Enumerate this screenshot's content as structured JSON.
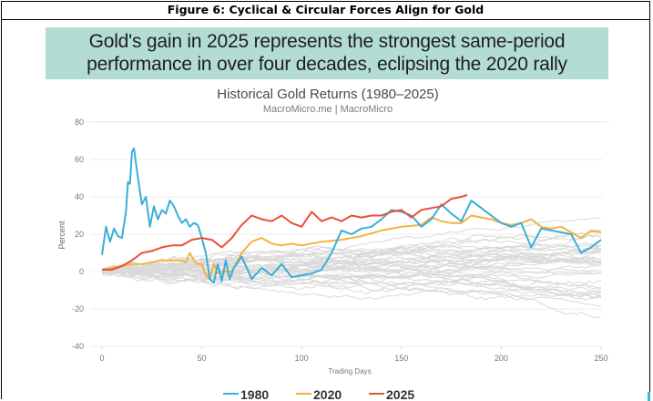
{
  "figure_title": "Figure 6: Cyclical & Circular Forces Align for Gold",
  "banner": {
    "line1": "Gold's gain in 2025 represents the strongest same-period",
    "line2": "performance in over four decades, eclipsing the 2020 rally"
  },
  "chart_data": {
    "type": "line",
    "title": "Historical Gold Returns (1980–2025)",
    "subtitle": "MacroMicro.me | MacroMicro",
    "xlabel": "Trading Days",
    "ylabel": "Percent",
    "xlim": [
      0,
      250
    ],
    "ylim": [
      -40,
      80
    ],
    "x_ticks": [
      0,
      50,
      100,
      150,
      200,
      250
    ],
    "x_tick_labels": [
      "0",
      "50",
      "100",
      "150",
      "200",
      "250"
    ],
    "y_ticks": [
      80,
      60,
      40,
      20,
      0,
      -20,
      -40
    ],
    "y_tick_labels": [
      "80",
      "60",
      "40",
      "20",
      "0",
      "-20",
      "-40"
    ],
    "grid": true,
    "legend_position": "bottom-center",
    "colors": {
      "1980": "#3aaed8",
      "2020": "#f3b33d",
      "2025": "#e8503a",
      "other": "#d9d9d9"
    },
    "series": [
      {
        "name": "1980",
        "x": [
          0,
          2,
          4,
          6,
          8,
          10,
          12,
          13,
          14,
          15,
          16,
          18,
          20,
          22,
          24,
          26,
          28,
          30,
          32,
          34,
          36,
          38,
          40,
          42,
          44,
          46,
          48,
          50,
          52,
          54,
          56,
          58,
          60,
          62,
          64,
          66,
          70,
          75,
          80,
          85,
          90,
          95,
          100,
          105,
          110,
          115,
          120,
          125,
          130,
          135,
          140,
          145,
          150,
          155,
          160,
          165,
          170,
          175,
          180,
          185,
          190,
          195,
          200,
          205,
          210,
          215,
          220,
          225,
          230,
          235,
          240,
          245,
          250
        ],
        "y": [
          9,
          24,
          16,
          23,
          19,
          18,
          32,
          48,
          47,
          64,
          66,
          50,
          36,
          40,
          24,
          35,
          28,
          33,
          31,
          38,
          35,
          30,
          26,
          28,
          24,
          26,
          25,
          18,
          10,
          -4,
          -6,
          4,
          -5,
          6,
          -4,
          2,
          8,
          -4,
          2,
          -2,
          4,
          -3,
          -2,
          -1,
          1,
          10,
          22,
          20,
          23,
          24,
          28,
          33,
          32,
          30,
          24,
          28,
          36,
          31,
          27,
          38,
          34,
          30,
          26,
          24,
          26,
          13,
          23,
          22,
          21,
          20,
          10,
          13,
          17
        ]
      },
      {
        "name": "2020",
        "x": [
          0,
          5,
          10,
          15,
          20,
          25,
          30,
          35,
          40,
          42,
          44,
          46,
          48,
          50,
          52,
          54,
          56,
          58,
          60,
          65,
          70,
          75,
          80,
          85,
          90,
          95,
          100,
          110,
          120,
          130,
          140,
          150,
          160,
          165,
          170,
          175,
          180,
          185,
          190,
          195,
          200,
          205,
          210,
          215,
          220,
          225,
          230,
          235,
          240,
          245,
          250
        ],
        "y": [
          1,
          2,
          3,
          4,
          4,
          5,
          6,
          6,
          6,
          5,
          10,
          6,
          4,
          4,
          -2,
          -4,
          4,
          -1,
          0,
          0,
          10,
          16,
          18,
          15,
          14,
          15,
          14,
          16,
          17,
          19,
          22,
          24,
          25,
          29,
          27,
          26,
          26,
          30,
          29,
          28,
          26,
          25,
          26,
          28,
          24,
          23,
          24,
          21,
          18,
          22,
          21
        ]
      },
      {
        "name": "2025",
        "x": [
          0,
          5,
          10,
          15,
          20,
          25,
          30,
          35,
          40,
          45,
          50,
          55,
          60,
          65,
          70,
          75,
          80,
          85,
          90,
          95,
          100,
          105,
          110,
          115,
          120,
          125,
          130,
          135,
          140,
          145,
          150,
          155,
          160,
          165,
          170,
          175,
          180,
          183
        ],
        "y": [
          1,
          1,
          3,
          6,
          10,
          11,
          13,
          14,
          14,
          17,
          18,
          17,
          13,
          18,
          25,
          30,
          28,
          27,
          30,
          26,
          24,
          32,
          27,
          29,
          27,
          30,
          29,
          30,
          30,
          32,
          33,
          29,
          33,
          34,
          35,
          39,
          40,
          41
        ]
      }
    ],
    "background_series_count": 40
  },
  "legend": [
    {
      "label": "1980",
      "color": "#3aaed8"
    },
    {
      "label": "2020",
      "color": "#f3b33d"
    },
    {
      "label": "2025",
      "color": "#e8503a"
    }
  ]
}
